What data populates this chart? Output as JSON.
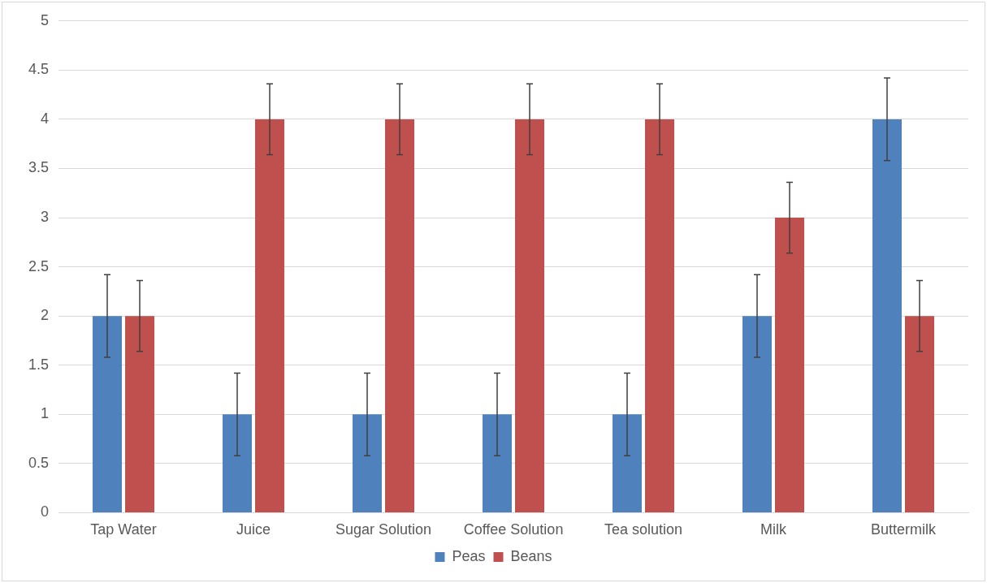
{
  "chart_data": {
    "type": "bar",
    "categories": [
      "Tap Water",
      "Juice",
      "Sugar Solution",
      "Coffee Solution",
      "Tea solution",
      "Milk",
      "Buttermilk"
    ],
    "series": [
      {
        "name": "Peas",
        "color": "#4f81bd",
        "values": [
          2,
          1,
          1,
          1,
          1,
          2,
          4
        ],
        "errors": [
          0.42,
          0.42,
          0.42,
          0.42,
          0.42,
          0.42,
          0.42
        ]
      },
      {
        "name": "Beans",
        "color": "#c0504d",
        "values": [
          2,
          4,
          4,
          4,
          4,
          3,
          2
        ],
        "errors": [
          0.36,
          0.36,
          0.36,
          0.36,
          0.36,
          0.36,
          0.36
        ]
      }
    ],
    "ylim": [
      0,
      5
    ],
    "yticks": [
      0,
      0.5,
      1,
      1.5,
      2,
      2.5,
      3,
      3.5,
      4,
      4.5,
      5
    ],
    "grid": "y",
    "legend": "bottom"
  }
}
